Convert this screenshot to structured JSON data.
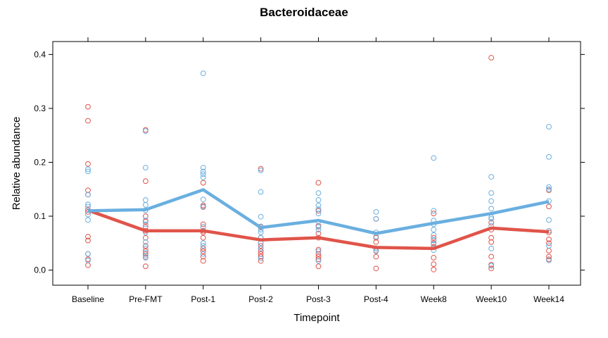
{
  "chart_data": {
    "type": "scatter",
    "title": "Bacteroidaceae",
    "xlabel": "Timepoint",
    "ylabel": "Relative abundance",
    "categories": [
      "Baseline",
      "Pre-FMT",
      "Post-1",
      "Post-2",
      "Post-3",
      "Post-4",
      "Week8",
      "Week10",
      "Week14"
    ],
    "ylim": [
      -0.028,
      0.424
    ],
    "yticks": [
      0.0,
      0.1,
      0.2,
      0.3,
      0.4
    ],
    "ytick_labels": [
      "0.0",
      "0.1",
      "0.2",
      "0.3",
      "0.4"
    ],
    "grid": false,
    "legend": "none",
    "series": [
      {
        "color": "#E0544A",
        "mean_line": [
          0.111,
          0.073,
          0.073,
          0.056,
          0.06,
          0.042,
          0.04,
          0.078,
          0.071
        ],
        "points": [
          [
            0.303,
            0.277,
            0.197,
            0.148,
            0.14,
            0.112,
            0.108,
            0.062,
            0.055,
            0.03,
            0.02,
            0.009
          ],
          [
            0.26,
            0.165,
            0.1,
            0.09,
            0.08,
            0.073,
            0.06,
            0.045,
            0.035,
            0.03,
            0.024,
            0.007
          ],
          [
            0.162,
            0.12,
            0.117,
            0.085,
            0.08,
            0.073,
            0.07,
            0.06,
            0.04,
            0.035,
            0.025,
            0.017
          ],
          [
            0.188,
            0.08,
            0.06,
            0.05,
            0.045,
            0.04,
            0.035,
            0.03,
            0.025,
            0.017
          ],
          [
            0.162,
            0.11,
            0.082,
            0.068,
            0.06,
            0.038,
            0.03,
            0.025,
            0.02,
            0.007
          ],
          [
            0.095,
            0.06,
            0.052,
            0.04,
            0.036,
            0.025,
            0.003
          ],
          [
            0.105,
            0.06,
            0.055,
            0.05,
            0.043,
            0.023,
            0.011,
            0.001
          ],
          [
            0.394,
            0.088,
            0.075,
            0.06,
            0.052,
            0.025,
            0.01,
            0.003
          ],
          [
            0.148,
            0.118,
            0.07,
            0.057,
            0.05,
            0.036,
            0.025,
            0.02
          ]
        ]
      },
      {
        "color": "#6AAFE0",
        "mean_line": [
          0.11,
          0.112,
          0.149,
          0.079,
          0.092,
          0.068,
          0.087,
          0.105,
          0.127
        ],
        "points": [
          [
            0.187,
            0.183,
            0.14,
            0.122,
            0.118,
            0.103,
            0.093,
            0.03,
            0.018
          ],
          [
            0.258,
            0.19,
            0.13,
            0.121,
            0.111,
            0.092,
            0.085,
            0.07,
            0.052,
            0.04,
            0.027,
            0.023
          ],
          [
            0.365,
            0.19,
            0.183,
            0.178,
            0.172,
            0.131,
            0.118,
            0.08,
            0.05,
            0.045,
            0.03
          ],
          [
            0.185,
            0.145,
            0.099,
            0.081,
            0.075,
            0.07,
            0.06,
            0.05,
            0.04,
            0.022
          ],
          [
            0.143,
            0.13,
            0.12,
            0.113,
            0.105,
            0.09,
            0.08,
            0.075,
            0.035,
            0.017
          ],
          [
            0.108,
            0.095,
            0.07,
            0.062,
            0.04,
            0.035
          ],
          [
            0.208,
            0.11,
            0.092,
            0.085,
            0.075,
            0.065,
            0.055,
            0.048,
            0.037
          ],
          [
            0.173,
            0.143,
            0.128,
            0.114,
            0.098,
            0.095,
            0.082,
            0.04,
            0.008
          ],
          [
            0.266,
            0.21,
            0.154,
            0.15,
            0.128,
            0.093,
            0.073,
            0.045,
            0.018
          ]
        ]
      }
    ]
  }
}
